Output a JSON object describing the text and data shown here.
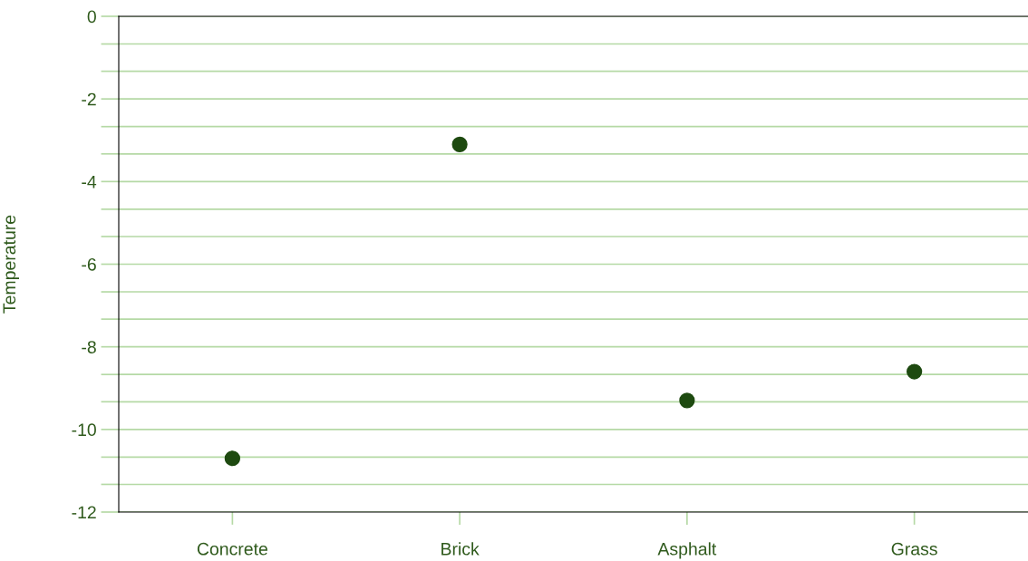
{
  "chart_data": {
    "type": "scatter",
    "ylabel": "Temperature",
    "categories": [
      "Concrete",
      "Brick",
      "Asphalt",
      "Grass"
    ],
    "series": [
      {
        "color": "#1e4a10",
        "values": [
          -10.7,
          -3.1,
          -9.3,
          -8.6
        ]
      }
    ],
    "ylim": [
      -12,
      0
    ],
    "yticks": [
      -12,
      {
        "value": -11.33,
        "label": null
      },
      {
        "value": -10.67,
        "label": null
      },
      -10,
      {
        "value": -9.33,
        "label": null
      },
      {
        "value": -8.67,
        "label": null
      },
      -8,
      {
        "value": -7.33,
        "label": null
      },
      {
        "value": -6.67,
        "label": null
      },
      -6,
      {
        "value": -5.33,
        "label": null
      },
      {
        "value": -4.67,
        "label": null
      },
      -4,
      {
        "value": -3.33,
        "label": null
      },
      {
        "value": -2.67,
        "label": null
      },
      -2,
      {
        "value": -1.33,
        "label": null
      },
      {
        "value": -0.67,
        "label": null
      },
      0
    ],
    "grid": "y",
    "marker": "circle"
  }
}
